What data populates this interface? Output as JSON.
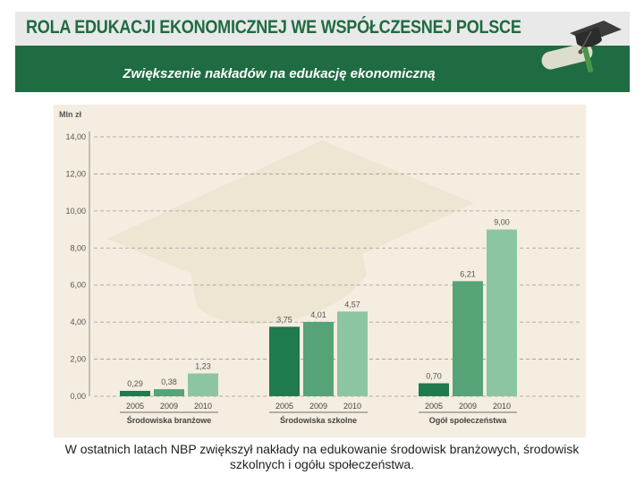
{
  "header": {
    "title": "ROLA EDUKACJI EKONOMICZNEJ WE WSPÓŁCZESNEJ POLSCE",
    "subtitle": "Zwiększenie nakładów na edukację ekonomiczną"
  },
  "chart_data": {
    "type": "bar",
    "ylabel": "Mln zł",
    "ylim": [
      0,
      14
    ],
    "yticks": [
      "0,00",
      "2,00",
      "4,00",
      "6,00",
      "8,00",
      "10,00",
      "12,00",
      "14,00"
    ],
    "grid": true,
    "groups": [
      {
        "name": "Środowiska branżowe",
        "categories": [
          "2005",
          "2009",
          "2010"
        ],
        "values": [
          0.29,
          0.38,
          1.23
        ],
        "labels": [
          "0,29",
          "0,38",
          "1,23"
        ]
      },
      {
        "name": "Środowiska szkolne",
        "categories": [
          "2005",
          "2009",
          "2010"
        ],
        "values": [
          3.75,
          4.01,
          4.57
        ],
        "labels": [
          "3,75",
          "4,01",
          "4,57"
        ]
      },
      {
        "name": "Ogół społeczeństwa",
        "categories": [
          "2005",
          "2009",
          "2010"
        ],
        "values": [
          0.7,
          6.21,
          9.0
        ],
        "labels": [
          "0,70",
          "6,21",
          "9,00"
        ]
      }
    ],
    "colors": [
      "#1f7a4e",
      "#55a377",
      "#8cc5a2"
    ]
  },
  "caption": "W ostatnich latach NBP zwiększył nakłady na edukowanie środowisk branżowych, środowisk szkolnych i ogółu społeczeństwa."
}
